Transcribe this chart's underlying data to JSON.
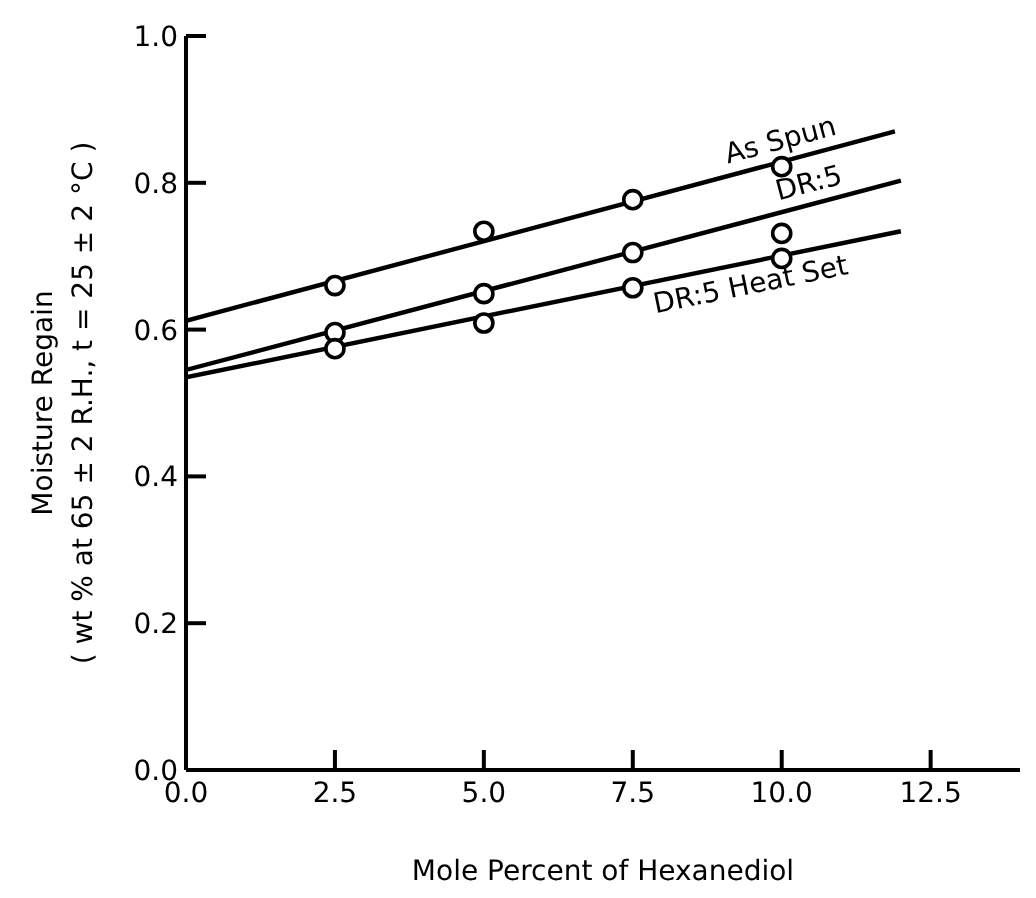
{
  "chart_data": {
    "type": "line",
    "xlabel": "Mole Percent of Hexanediol",
    "ylabel": "Moisture Regain\n( wt % at 65 ± 2 R.H., t = 25 ± 2 °C )",
    "xlim": [
      0,
      14
    ],
    "ylim": [
      0,
      1
    ],
    "xticks": [
      {
        "value": 0,
        "label": "0.0"
      },
      {
        "value": 2.5,
        "label": "2.5"
      },
      {
        "value": 5,
        "label": "5.0"
      },
      {
        "value": 7.5,
        "label": "7.5"
      },
      {
        "value": 10,
        "label": "10.0"
      },
      {
        "value": 12.5,
        "label": "12.5"
      }
    ],
    "yticks": [
      {
        "value": 0,
        "label": "0.0"
      },
      {
        "value": 0.2,
        "label": "0.2"
      },
      {
        "value": 0.4,
        "label": "0.4"
      },
      {
        "value": 0.6,
        "label": "0.6"
      },
      {
        "value": 0.8,
        "label": "0.8"
      },
      {
        "value": 1,
        "label": "1.0"
      }
    ],
    "grid": false,
    "legend": false,
    "series": [
      {
        "name": "As Spun",
        "color": "#000000",
        "x": [
          0,
          11.9
        ],
        "values": [
          0.612,
          0.87
        ],
        "marker": "none"
      },
      {
        "name": "DR:5",
        "color": "#000000",
        "x": [
          0,
          12
        ],
        "values": [
          0.545,
          0.803
        ],
        "marker": "none"
      },
      {
        "name": "DR:5 Heat Set",
        "color": "#000000",
        "x": [
          0,
          12
        ],
        "values": [
          0.535,
          0.734
        ],
        "marker": "none"
      },
      {
        "type": "scatter",
        "color": "#000000",
        "x": [
          2.5,
          5,
          7.5,
          10
        ],
        "values": [
          0.66,
          0.734,
          0.777,
          0.822
        ],
        "marker": "circle"
      },
      {
        "type": "scatter",
        "color": "#000000",
        "x": [
          2.5,
          5,
          7.5,
          10
        ],
        "values": [
          0.596,
          0.649,
          0.705,
          0.731
        ],
        "marker": "circle"
      },
      {
        "type": "scatter",
        "color": "#000000",
        "x": [
          2.5,
          5,
          7.5,
          10
        ],
        "values": [
          0.574,
          0.609,
          0.657,
          0.697
        ],
        "marker": "circle"
      }
    ]
  }
}
